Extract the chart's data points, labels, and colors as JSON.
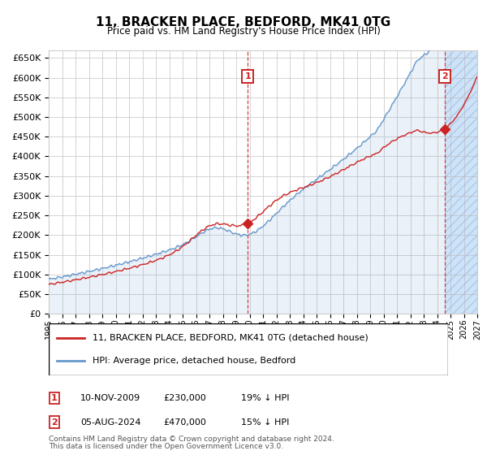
{
  "title": "11, BRACKEN PLACE, BEDFORD, MK41 0TG",
  "subtitle": "Price paid vs. HM Land Registry's House Price Index (HPI)",
  "yticks": [
    0,
    50000,
    100000,
    150000,
    200000,
    250000,
    300000,
    350000,
    400000,
    450000,
    500000,
    550000,
    600000,
    650000
  ],
  "ylim": [
    0,
    670000
  ],
  "xlim_start": 1995.0,
  "xlim_end": 2027.0,
  "xticks": [
    1995,
    1996,
    1997,
    1998,
    1999,
    2000,
    2001,
    2002,
    2003,
    2004,
    2005,
    2006,
    2007,
    2008,
    2009,
    2010,
    2011,
    2012,
    2013,
    2014,
    2015,
    2016,
    2017,
    2018,
    2019,
    2020,
    2021,
    2022,
    2023,
    2024,
    2025,
    2026,
    2027
  ],
  "hpi_color": "#6699cc",
  "price_color": "#cc2222",
  "sale1_date": 2009.86,
  "sale1_price": 230000,
  "sale1_label": "1",
  "sale2_date": 2024.58,
  "sale2_price": 470000,
  "sale2_label": "2",
  "legend_line1": "11, BRACKEN PLACE, BEDFORD, MK41 0TG (detached house)",
  "legend_line2": "HPI: Average price, detached house, Bedford",
  "ann1_col1": "10-NOV-2009",
  "ann1_col2": "£230,000",
  "ann1_col3": "19% ↓ HPI",
  "ann2_col1": "05-AUG-2024",
  "ann2_col2": "£470,000",
  "ann2_col3": "15% ↓ HPI",
  "footnote1": "Contains HM Land Registry data © Crown copyright and database right 2024.",
  "footnote2": "This data is licensed under the Open Government Licence v3.0.",
  "grid_color": "#cccccc",
  "bg_light_blue": "#ddeeff",
  "hatch_bg": "#d0e4f7"
}
